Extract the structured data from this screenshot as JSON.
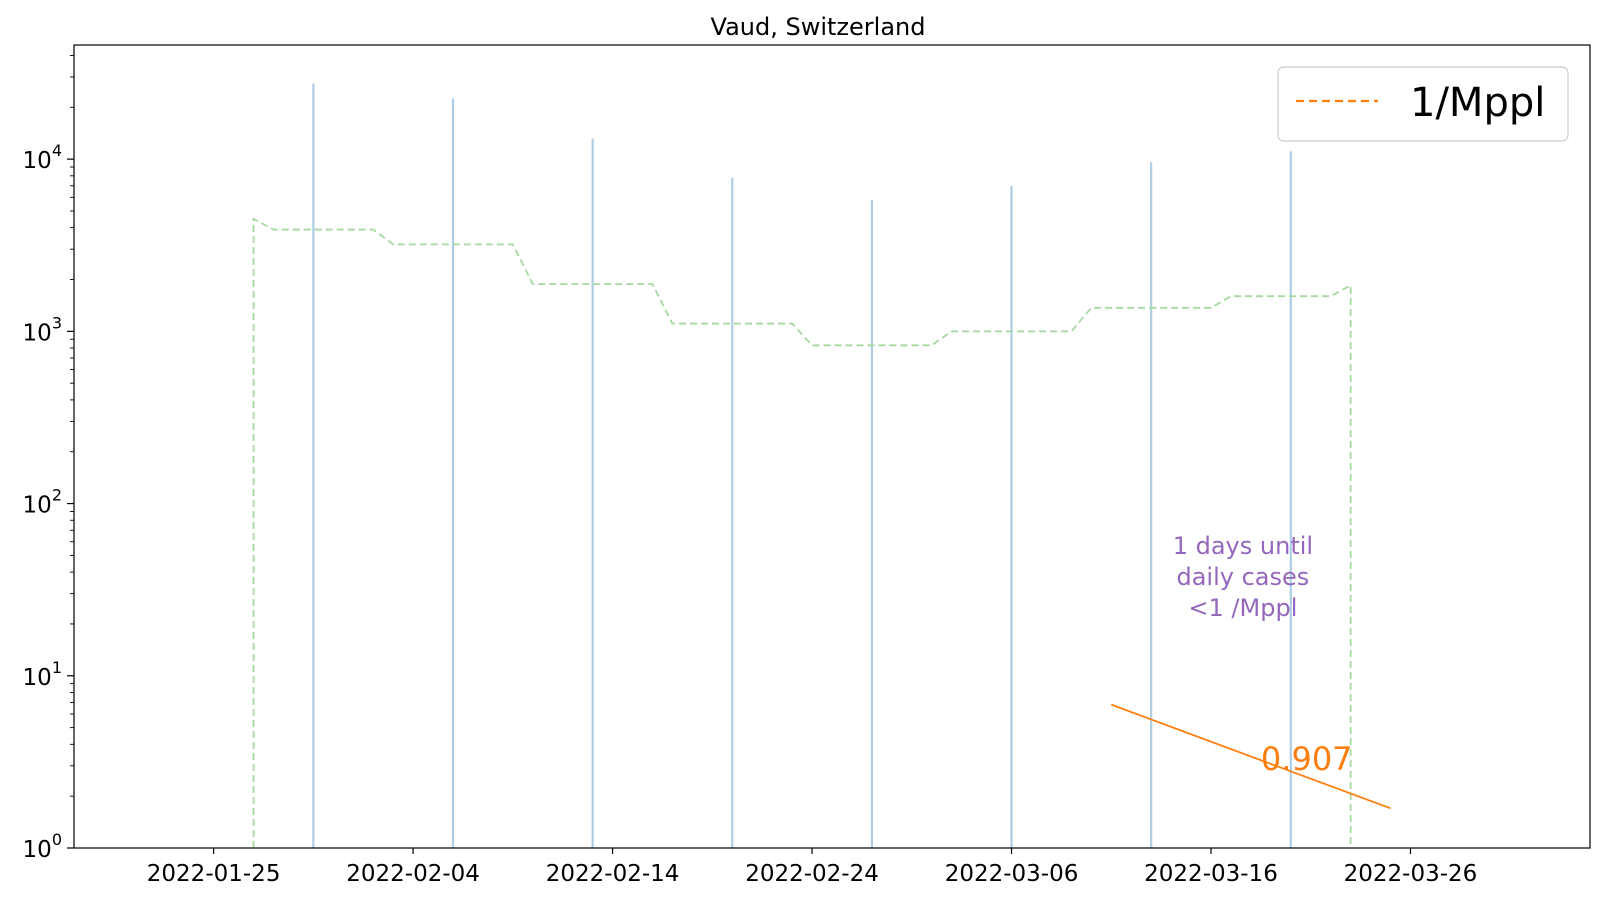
{
  "chart_data": {
    "type": "line",
    "title": "Vaud, Switzerland",
    "xlabel": "",
    "ylabel": "",
    "y_scale": "log",
    "ylim": [
      1,
      46000
    ],
    "xlim": [
      "2022-01-18",
      "2022-04-04"
    ],
    "grid": false,
    "legend_position": "top-right",
    "x_ticks": [
      "2022-01-25",
      "2022-02-04",
      "2022-02-14",
      "2022-02-24",
      "2022-03-06",
      "2022-03-16",
      "2022-03-26",
      "2022-04-05"
    ],
    "x_tick_labels": [
      "2022-01-25",
      "2022-02-04",
      "2022-02-14",
      "2022-02-24",
      "2022-03-06",
      "2022-03-16",
      "2022-03-26",
      ""
    ],
    "y_ticks": [
      {
        "value": 1,
        "base": "10",
        "exp": "0"
      },
      {
        "value": 10,
        "base": "10",
        "exp": "1"
      },
      {
        "value": 100,
        "base": "10",
        "exp": "2"
      },
      {
        "value": 1000,
        "base": "10",
        "exp": "3"
      },
      {
        "value": 10000,
        "base": "10",
        "exp": "4"
      }
    ],
    "series": [
      {
        "role": "daily-cases",
        "style": "vertical-bars",
        "color": "#aecde6",
        "points": [
          {
            "x": "2022-01-30",
            "y": 27500
          },
          {
            "x": "2022-02-06",
            "y": 22500
          },
          {
            "x": "2022-02-13",
            "y": 13200
          },
          {
            "x": "2022-02-20",
            "y": 7800
          },
          {
            "x": "2022-02-27",
            "y": 5800
          },
          {
            "x": "2022-03-06",
            "y": 7000
          },
          {
            "x": "2022-03-13",
            "y": 9600
          },
          {
            "x": "2022-03-20",
            "y": 11100
          }
        ]
      },
      {
        "role": "weekly-average",
        "style": "dashed",
        "color": "#a6d8a0",
        "points": [
          {
            "x": "2022-01-27",
            "y": 1
          },
          {
            "x": "2022-01-27",
            "y": 4500
          },
          {
            "x": "2022-01-28",
            "y": 3900
          },
          {
            "x": "2022-02-02",
            "y": 3900
          },
          {
            "x": "2022-02-03",
            "y": 3200
          },
          {
            "x": "2022-02-09",
            "y": 3200
          },
          {
            "x": "2022-02-10",
            "y": 1880
          },
          {
            "x": "2022-02-16",
            "y": 1880
          },
          {
            "x": "2022-02-17",
            "y": 1110
          },
          {
            "x": "2022-02-23",
            "y": 1110
          },
          {
            "x": "2022-02-24",
            "y": 830
          },
          {
            "x": "2022-03-02",
            "y": 830
          },
          {
            "x": "2022-03-03",
            "y": 1000
          },
          {
            "x": "2022-03-09",
            "y": 1000
          },
          {
            "x": "2022-03-10",
            "y": 1370
          },
          {
            "x": "2022-03-16",
            "y": 1370
          },
          {
            "x": "2022-03-17",
            "y": 1600
          },
          {
            "x": "2022-03-22",
            "y": 1600
          },
          {
            "x": "2022-03-23",
            "y": 1850
          },
          {
            "x": "2022-03-23",
            "y": 1
          }
        ]
      },
      {
        "name": "1/Mppl",
        "role": "projection",
        "style": "solid",
        "color": "#ff7f0e",
        "points": [
          {
            "x": "2022-03-11",
            "y": 6.8
          },
          {
            "x": "2022-03-25",
            "y": 1.7
          }
        ]
      }
    ],
    "legend": [
      {
        "label": "1/Mppl",
        "style": "dashed",
        "color": "#ff7f0e"
      }
    ],
    "annotations": [
      {
        "role": "days-until",
        "lines": [
          "1 days until",
          "daily cases",
          "<1 /Mppl"
        ],
        "color": "#9467bd"
      },
      {
        "role": "slope",
        "text": "0.907",
        "color": "#ff7f0e"
      }
    ]
  }
}
